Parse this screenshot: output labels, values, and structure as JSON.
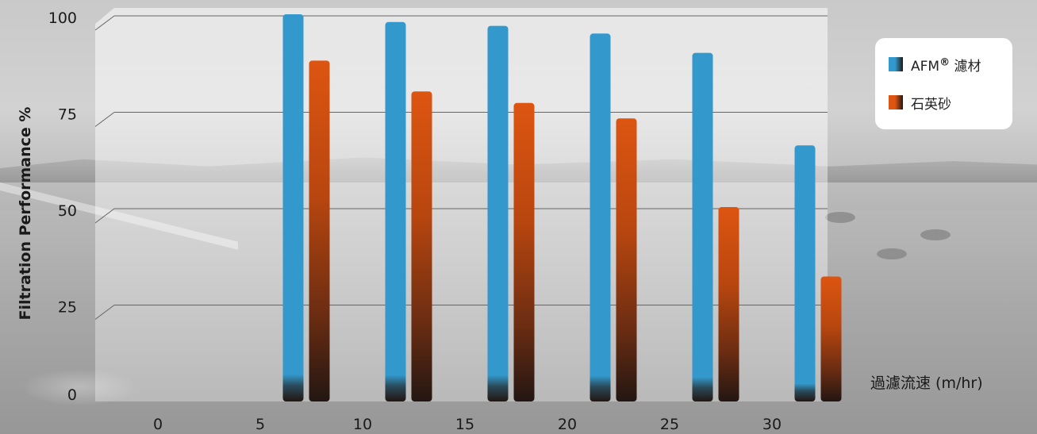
{
  "chart_data": {
    "type": "bar",
    "categories": [
      "0",
      "5",
      "10",
      "15",
      "20",
      "25",
      "30"
    ],
    "series": [
      {
        "name": "AFM® 濾材",
        "name_base": "AFM",
        "name_mark": "®",
        "name_suffix": " 濾材",
        "color": "#3399cc",
        "values": [
          null,
          100,
          98,
          97,
          95,
          90,
          66
        ]
      },
      {
        "name": "石英砂",
        "color": "#dd5511",
        "values": [
          null,
          88,
          80,
          77,
          73,
          50,
          32
        ]
      }
    ],
    "xlabel": "過濾流速 (m/hr)",
    "ylabel": "Filtration Performance %",
    "yticks": [
      "0",
      "25",
      "50",
      "75",
      "100"
    ],
    "ylim": [
      0,
      100
    ],
    "grid": true,
    "legend": "top-right",
    "bar_base_color": "#231612"
  }
}
